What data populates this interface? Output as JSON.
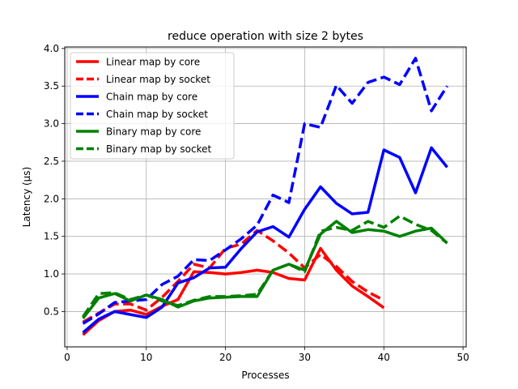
{
  "chart_data": {
    "type": "line",
    "title": "reduce operation with size 2 bytes",
    "xlabel": "Processes",
    "ylabel": "Latency (μs)",
    "xlim": [
      -0.3,
      50.4
    ],
    "ylim": [
      0.03,
      4.02
    ],
    "xticks": [
      0,
      10,
      20,
      30,
      40,
      50
    ],
    "yticks": [
      0.5,
      1.0,
      1.5,
      2.0,
      2.5,
      3.0,
      3.5,
      4.0
    ],
    "xtick_labels": [
      "0",
      "10",
      "20",
      "30",
      "40",
      "50"
    ],
    "ytick_labels": [
      "0.5",
      "1.0",
      "1.5",
      "2.0",
      "2.5",
      "3.0",
      "3.5",
      "4.0"
    ],
    "grid": true,
    "legend_position": "top-left",
    "series": [
      {
        "name": "Linear map by core",
        "color": "#ff0000",
        "dash": "solid",
        "x": [
          2,
          4,
          6,
          8,
          10,
          12,
          14,
          16,
          18,
          20,
          22,
          24,
          26,
          28,
          30,
          32,
          34,
          36,
          38,
          40
        ],
        "y": [
          0.19,
          0.38,
          0.5,
          0.52,
          0.46,
          0.57,
          0.66,
          1.03,
          1.02,
          1.0,
          1.02,
          1.05,
          1.02,
          0.94,
          0.92,
          1.34,
          1.05,
          0.84,
          0.7,
          0.55
        ]
      },
      {
        "name": "Linear map by socket",
        "color": "#ff0000",
        "dash": "dashed",
        "x": [
          2,
          4,
          6,
          8,
          10,
          12,
          14,
          16,
          18,
          20,
          22,
          24,
          26,
          28,
          30,
          32,
          34,
          36,
          38,
          40
        ],
        "y": [
          0.36,
          0.48,
          0.6,
          0.6,
          0.52,
          0.69,
          0.9,
          1.13,
          1.08,
          1.34,
          1.4,
          1.58,
          1.44,
          1.28,
          1.08,
          1.26,
          1.1,
          0.9,
          0.76,
          0.65
        ]
      },
      {
        "name": "Chain map by core",
        "color": "#0000ff",
        "dash": "solid",
        "x": [
          2,
          4,
          6,
          8,
          10,
          12,
          14,
          16,
          18,
          20,
          22,
          24,
          26,
          28,
          30,
          32,
          34,
          36,
          38,
          40,
          42,
          44,
          46,
          48
        ],
        "y": [
          0.22,
          0.4,
          0.5,
          0.46,
          0.42,
          0.56,
          0.88,
          0.95,
          1.08,
          1.09,
          1.34,
          1.56,
          1.63,
          1.49,
          1.86,
          2.16,
          1.94,
          1.8,
          1.82,
          2.65,
          2.55,
          2.08,
          2.68,
          2.42
        ]
      },
      {
        "name": "Chain map by socket",
        "color": "#0000ff",
        "dash": "dashed",
        "x": [
          2,
          4,
          6,
          8,
          10,
          12,
          14,
          16,
          18,
          20,
          22,
          24,
          26,
          28,
          30,
          32,
          34,
          36,
          38,
          40,
          42,
          44,
          46,
          48
        ],
        "y": [
          0.34,
          0.47,
          0.62,
          0.64,
          0.66,
          0.86,
          0.97,
          1.19,
          1.18,
          1.32,
          1.47,
          1.65,
          2.05,
          1.95,
          3.0,
          2.95,
          3.51,
          3.27,
          3.55,
          3.62,
          3.52,
          3.87,
          3.17,
          3.5
        ]
      },
      {
        "name": "Binary map by core",
        "color": "#008000",
        "dash": "solid",
        "x": [
          2,
          4,
          6,
          8,
          10,
          12,
          14,
          16,
          18,
          20,
          22,
          24,
          26,
          28,
          30,
          32,
          34,
          36,
          38,
          40,
          42,
          44,
          46,
          48
        ],
        "y": [
          0.41,
          0.68,
          0.74,
          0.64,
          0.72,
          0.66,
          0.56,
          0.64,
          0.68,
          0.69,
          0.7,
          0.7,
          1.05,
          1.13,
          1.05,
          1.53,
          1.7,
          1.55,
          1.59,
          1.57,
          1.5,
          1.57,
          1.61,
          1.41
        ]
      },
      {
        "name": "Binary map by socket",
        "color": "#008000",
        "dash": "dashed",
        "x": [
          2,
          4,
          6,
          8,
          10,
          12,
          14,
          16,
          18,
          20,
          22,
          24,
          26,
          28,
          30,
          32,
          34,
          36,
          38,
          40,
          42,
          44,
          46,
          48
        ],
        "y": [
          0.43,
          0.74,
          0.75,
          0.66,
          0.72,
          0.64,
          0.58,
          0.65,
          0.7,
          0.7,
          0.71,
          0.73,
          1.05,
          1.13,
          1.03,
          1.57,
          1.62,
          1.58,
          1.7,
          1.62,
          1.77,
          1.66,
          1.58,
          1.41
        ]
      }
    ]
  }
}
